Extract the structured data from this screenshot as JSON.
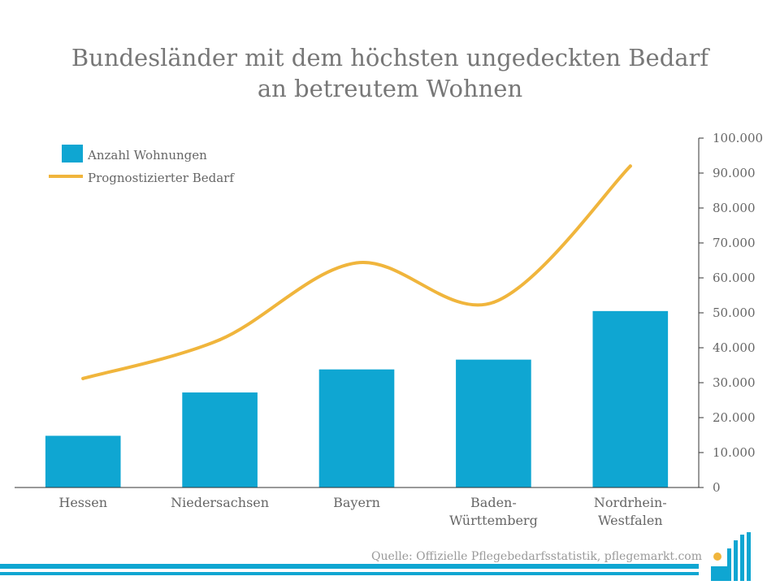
{
  "chart_data": {
    "type": "bar",
    "title": [
      "Bundesländer mit dem höchsten ungedeckten Bedarf",
      "an betreutem Wohnen"
    ],
    "categories": [
      [
        "Hessen"
      ],
      [
        "Niedersachsen"
      ],
      [
        "Bayern"
      ],
      [
        "Baden-",
        "Württemberg"
      ],
      [
        "Nordrhein-",
        "Westfalen"
      ]
    ],
    "series": [
      {
        "name": "Anzahl Wohnungen",
        "type": "bar",
        "values": [
          14800,
          27200,
          33800,
          36600,
          50500
        ]
      },
      {
        "name": "Prognostizierter Bedarf",
        "type": "line",
        "smooth": true,
        "values": [
          31200,
          42300,
          64300,
          53000,
          92000
        ]
      }
    ],
    "yaxis": {
      "position": "right",
      "ylim": [
        0,
        100000
      ],
      "ticks": [
        "0",
        "10.000",
        "20.000",
        "30.000",
        "40.000",
        "50.000",
        "60.000",
        "70.000",
        "80.000",
        "90.000",
        "100.000"
      ]
    },
    "legend": {
      "placement": "top-left"
    },
    "grid": false,
    "colors": {
      "bar": "#0fa6d2",
      "line": "#f0b53c",
      "axis": "#333333"
    }
  },
  "footer": {
    "source": "Quelle: Offizielle Pflegebedarfsstatistik, pflegemarkt.com"
  },
  "logo": {
    "colors": {
      "bars": "#0fa6d2",
      "dot": "#f0b53c"
    }
  }
}
